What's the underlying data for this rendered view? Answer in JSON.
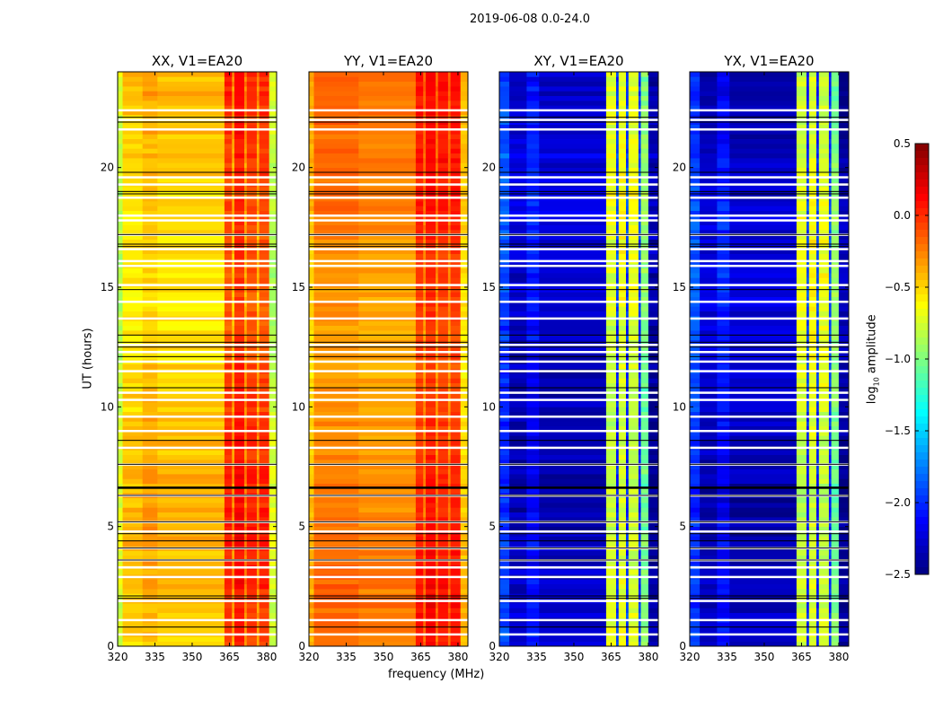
{
  "chart_data": {
    "type": "heatmap",
    "title": "2019-06-08 0.0-24.0",
    "xlabel": "frequency (MHz)",
    "ylabel": "UT (hours)",
    "xlim": [
      320,
      384
    ],
    "ylim": [
      0,
      24
    ],
    "xticks": [
      "320",
      "335",
      "350",
      "365",
      "380"
    ],
    "yticks": [
      "0",
      "5",
      "10",
      "15",
      "20"
    ],
    "colorbar": {
      "label": "log10 amplitude",
      "label_main": "log",
      "label_sub": "10",
      "label_rest": " amplitude",
      "range": [
        -2.5,
        0.5
      ],
      "ticks": [
        "0.5",
        "0.0",
        "−0.5",
        "−1.0",
        "−1.5",
        "−2.0",
        "−2.5"
      ],
      "tick_values": [
        0.5,
        0.0,
        -0.5,
        -1.0,
        -1.5,
        -2.0,
        -2.5
      ],
      "colormap": "jet"
    },
    "flagged_hours_white": [
      22.4,
      22.0,
      21.6,
      19.6,
      19.3,
      18.75,
      18.0,
      17.8,
      17.2,
      16.6,
      16.1,
      15.9,
      15.1,
      14.4,
      13.7,
      12.6,
      12.3,
      11.9,
      11.5,
      10.6,
      10.3,
      9.6,
      9.0,
      8.3,
      7.6,
      6.3,
      5.2,
      4.8,
      4.1,
      3.6,
      3.3,
      2.9,
      1.9,
      1.1,
      0.5
    ],
    "black_lines_hours": [
      22.1,
      21.9,
      19.8,
      19.0,
      18.9,
      17.2,
      16.8,
      16.7,
      14.9,
      13.0,
      12.7,
      12.5,
      12.1,
      10.8,
      8.6,
      7.6,
      6.65,
      6.3,
      5.2,
      4.7,
      4.4,
      4.1,
      3.6,
      2.1,
      2.0,
      0.8
    ],
    "panels": [
      {
        "name": "XX, V1=EA20",
        "base": -0.45,
        "time_var": 0.12,
        "freq_profile": [
          [
            320,
            322,
            -0.8
          ],
          [
            322,
            330,
            -0.5
          ],
          [
            330,
            336,
            -0.42
          ],
          [
            336,
            363,
            -0.48
          ],
          [
            363,
            366,
            -0.05
          ],
          [
            366,
            367,
            -0.35
          ],
          [
            367,
            371,
            0.05
          ],
          [
            371,
            372,
            -0.3
          ],
          [
            372,
            376,
            -0.05
          ],
          [
            376,
            377,
            -0.35
          ],
          [
            377,
            381,
            -0.05
          ],
          [
            381,
            384,
            -0.8
          ]
        ]
      },
      {
        "name": "YY, V1=EA20",
        "base": -0.3,
        "time_var": 0.1,
        "freq_profile": [
          [
            320,
            322,
            -0.45
          ],
          [
            322,
            340,
            -0.25
          ],
          [
            340,
            363,
            -0.3
          ],
          [
            363,
            366,
            0.0
          ],
          [
            366,
            367,
            -0.25
          ],
          [
            367,
            371,
            0.05
          ],
          [
            371,
            372,
            -0.25
          ],
          [
            372,
            376,
            0.0
          ],
          [
            376,
            377,
            -0.25
          ],
          [
            377,
            381,
            0.0
          ],
          [
            381,
            384,
            -0.5
          ]
        ]
      },
      {
        "name": "XY, V1=EA20",
        "base": -2.3,
        "time_var": 0.15,
        "freq_profile": [
          [
            320,
            324,
            -1.95
          ],
          [
            324,
            331,
            -2.3
          ],
          [
            331,
            336,
            -2.1
          ],
          [
            336,
            363,
            -2.3
          ],
          [
            363,
            367,
            -0.75
          ],
          [
            367,
            368,
            -2.0
          ],
          [
            368,
            371,
            -0.7
          ],
          [
            371,
            372,
            -2.0
          ],
          [
            372,
            376,
            -0.75
          ],
          [
            376,
            377,
            -2.0
          ],
          [
            377,
            380,
            -1.0
          ],
          [
            380,
            384,
            -2.4
          ]
        ]
      },
      {
        "name": "YX, V1=EA20",
        "base": -2.3,
        "time_var": 0.15,
        "freq_profile": [
          [
            320,
            324,
            -1.95
          ],
          [
            324,
            331,
            -2.3
          ],
          [
            331,
            336,
            -2.1
          ],
          [
            336,
            363,
            -2.3
          ],
          [
            363,
            367,
            -0.75
          ],
          [
            367,
            368,
            -2.0
          ],
          [
            368,
            371,
            -0.7
          ],
          [
            371,
            372,
            -2.0
          ],
          [
            372,
            376,
            -0.75
          ],
          [
            376,
            377,
            -2.0
          ],
          [
            377,
            380,
            -1.0
          ],
          [
            380,
            384,
            -2.4
          ]
        ]
      }
    ]
  }
}
